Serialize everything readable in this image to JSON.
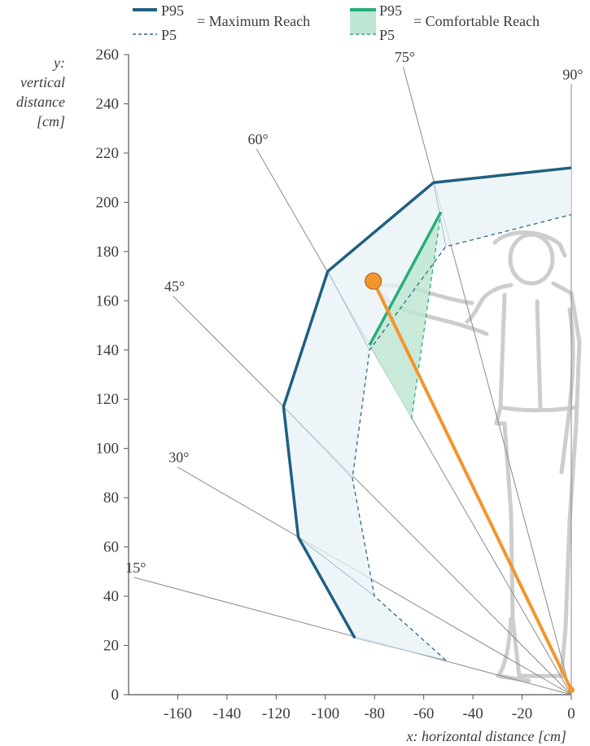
{
  "chart_data": {
    "type": "line",
    "xlabel": "x: horizontal distance [cm]",
    "ylabel": [
      "y:",
      "vertical",
      "distance",
      "[cm]"
    ],
    "xlim": [
      -180,
      0
    ],
    "ylim": [
      0,
      260
    ],
    "x_ticks": [
      -160,
      -140,
      -120,
      -100,
      -80,
      -60,
      -40,
      -20,
      0
    ],
    "y_ticks": [
      0,
      20,
      40,
      60,
      80,
      100,
      120,
      140,
      160,
      180,
      200,
      220,
      240,
      260
    ],
    "angle_lines": [
      {
        "label": "15°",
        "angle": 15,
        "length": 184
      },
      {
        "label": "30°",
        "angle": 30,
        "length": 185
      },
      {
        "label": "45°",
        "angle": 45,
        "length": 229
      },
      {
        "label": "60°",
        "angle": 60,
        "length": 256
      },
      {
        "label": "75°",
        "angle": 75,
        "length": 264
      },
      {
        "label": "90°",
        "angle": 90,
        "length": 248
      }
    ],
    "legend": {
      "max_p95": "P95",
      "max_p5": "P5",
      "max_label": "= Maximum Reach",
      "comf_p95": "P95",
      "comf_p5": "P5",
      "comf_label": "= Comfortable Reach",
      "position": "top"
    },
    "series": [
      {
        "name": "Maximum Reach P95",
        "style": "solid",
        "color": "#1f5f82",
        "x": [
          -88,
          -111,
          -117,
          -99,
          -56,
          0
        ],
        "y": [
          23,
          64,
          117,
          172,
          208,
          214
        ]
      },
      {
        "name": "Maximum Reach P5",
        "style": "dashed",
        "color": "#2c6a8a",
        "x": [
          -51,
          -80,
          -89,
          -82,
          -51,
          0
        ],
        "y": [
          14,
          40,
          88,
          140,
          182,
          195
        ]
      },
      {
        "name": "Comfortable Reach P95",
        "style": "solid",
        "color": "#27ae78",
        "x": [
          -82,
          -53
        ],
        "y": [
          142,
          196
        ]
      },
      {
        "name": "Comfortable Reach P5",
        "style": "dashed",
        "color": "#27ae78",
        "x": [
          -65,
          -53
        ],
        "y": [
          112,
          196
        ]
      }
    ],
    "reach_arm": {
      "color": "#f2952d",
      "x": [
        0,
        -80.5
      ],
      "y": [
        2,
        168
      ]
    },
    "colors": {
      "max_fill": "#e8f2f5",
      "comf_fill": "#bfe6d2",
      "guide_line": "#8a8a8a",
      "axis": "#555555",
      "figure": "#c8c8c8"
    }
  }
}
